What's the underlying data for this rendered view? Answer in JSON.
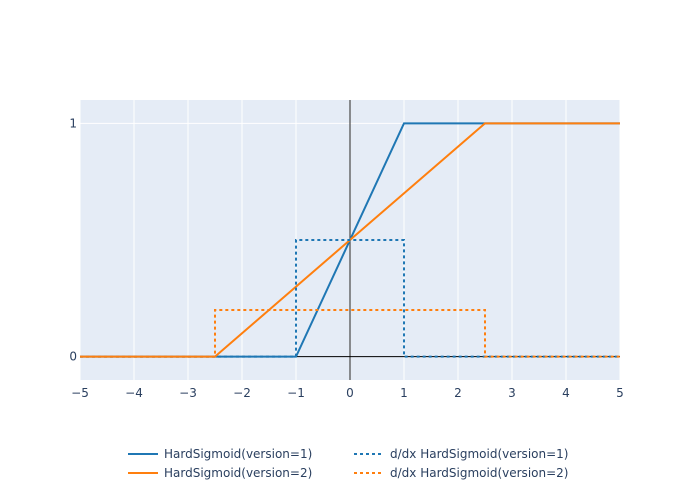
{
  "chart_data": {
    "type": "line",
    "xlim": [
      -5,
      5
    ],
    "ylim": [
      -0.1,
      1.1
    ],
    "x_ticks": [
      -5,
      -4,
      -3,
      -2,
      -1,
      0,
      1,
      2,
      3,
      4,
      5
    ],
    "x_tick_labels": [
      "−5",
      "−4",
      "−3",
      "−2",
      "−1",
      "0",
      "1",
      "2",
      "3",
      "4",
      "5"
    ],
    "y_ticks": [
      0,
      1
    ],
    "y_tick_labels": [
      "0",
      "1"
    ],
    "grid": true,
    "legend_position": "bottom",
    "series": [
      {
        "name": "HardSigmoid(version=1)",
        "color": "#1f77b4",
        "dash": "solid",
        "x": [
          -5,
          -1,
          1,
          5
        ],
        "y": [
          0,
          0,
          1,
          1
        ]
      },
      {
        "name": "HardSigmoid(version=2)",
        "color": "#ff7f0e",
        "dash": "solid",
        "x": [
          -5,
          -2.5,
          2.5,
          5
        ],
        "y": [
          0,
          0,
          1,
          1
        ]
      },
      {
        "name": "d/dx HardSigmoid(version=1)",
        "color": "#1f77b4",
        "dash": "dot",
        "x": [
          -5,
          -1,
          -1,
          1,
          1,
          5
        ],
        "y": [
          0,
          0,
          0.5,
          0.5,
          0,
          0
        ]
      },
      {
        "name": "d/dx HardSigmoid(version=2)",
        "color": "#ff7f0e",
        "dash": "dot",
        "x": [
          -5,
          -2.5,
          -2.5,
          2.5,
          2.5,
          5
        ],
        "y": [
          0,
          0,
          0.2,
          0.2,
          0,
          0
        ]
      }
    ]
  }
}
